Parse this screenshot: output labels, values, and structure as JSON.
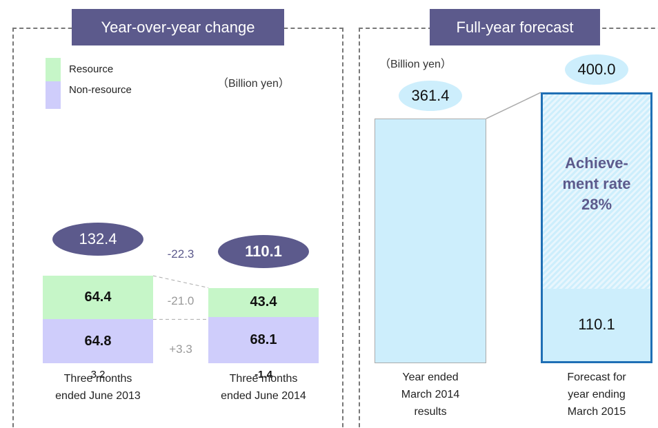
{
  "chart_data": [
    {
      "type": "bar",
      "stacked": true,
      "title": "Year-over-year change",
      "unit_label": "（Billion yen）",
      "categories": [
        "Three months ended June 2013",
        "Three months ended June 2014"
      ],
      "series": [
        {
          "name": "Resource",
          "color": "#c6f6c8",
          "values": [
            64.4,
            43.4
          ]
        },
        {
          "name": "Non-resource",
          "color": "#cfcdfb",
          "values": [
            64.8,
            68.1
          ]
        }
      ],
      "other": {
        "values": [
          3.2,
          -1.4
        ]
      },
      "totals": {
        "values": [
          132.4,
          110.1
        ]
      },
      "changes": {
        "values": [
          -22.3,
          -21.0,
          3.3
        ],
        "value_labels": [
          "-22.3",
          "-21.0",
          "+3.3"
        ]
      }
    },
    {
      "type": "bar",
      "title": "Full-year forecast",
      "unit_label": "（Billion yen）",
      "categories": [
        "Year ended March 2014 results",
        "Forecast for year ending March 2015"
      ],
      "values": [
        361.4,
        400.0
      ],
      "value_labels": [
        "361.4",
        "400.0"
      ],
      "color": "#cdeefc",
      "progress": {
        "value": 110.1
      },
      "achievement": {
        "label": "Achieve-ment rate",
        "value": 28,
        "value_label": "28%"
      }
    }
  ]
}
